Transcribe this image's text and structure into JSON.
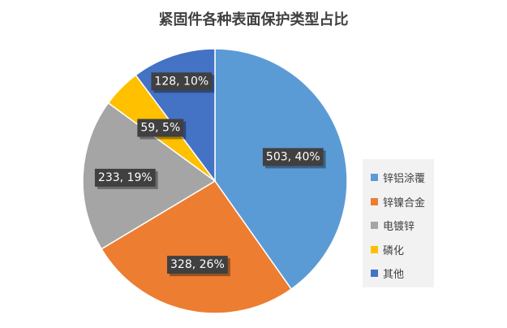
{
  "chart_data": {
    "type": "pie",
    "title": "紧固件各种表面保护类型占比",
    "categories": [
      "锌铝涂覆",
      "锌镍合金",
      "电镀锌",
      "磷化",
      "其他"
    ],
    "values": [
      503,
      328,
      233,
      59,
      128
    ],
    "percents": [
      "40%",
      "26%",
      "19%",
      "5%",
      "10%"
    ],
    "data_labels": [
      "503, 40%",
      "328, 26%",
      "233, 19%",
      "59, 5%",
      "128, 10%"
    ],
    "colors": [
      "#5b9bd5",
      "#ed7d31",
      "#a5a5a5",
      "#ffc000",
      "#4472c4"
    ],
    "start_angle_deg": 0,
    "direction": "clockwise",
    "legend_position": "right"
  }
}
